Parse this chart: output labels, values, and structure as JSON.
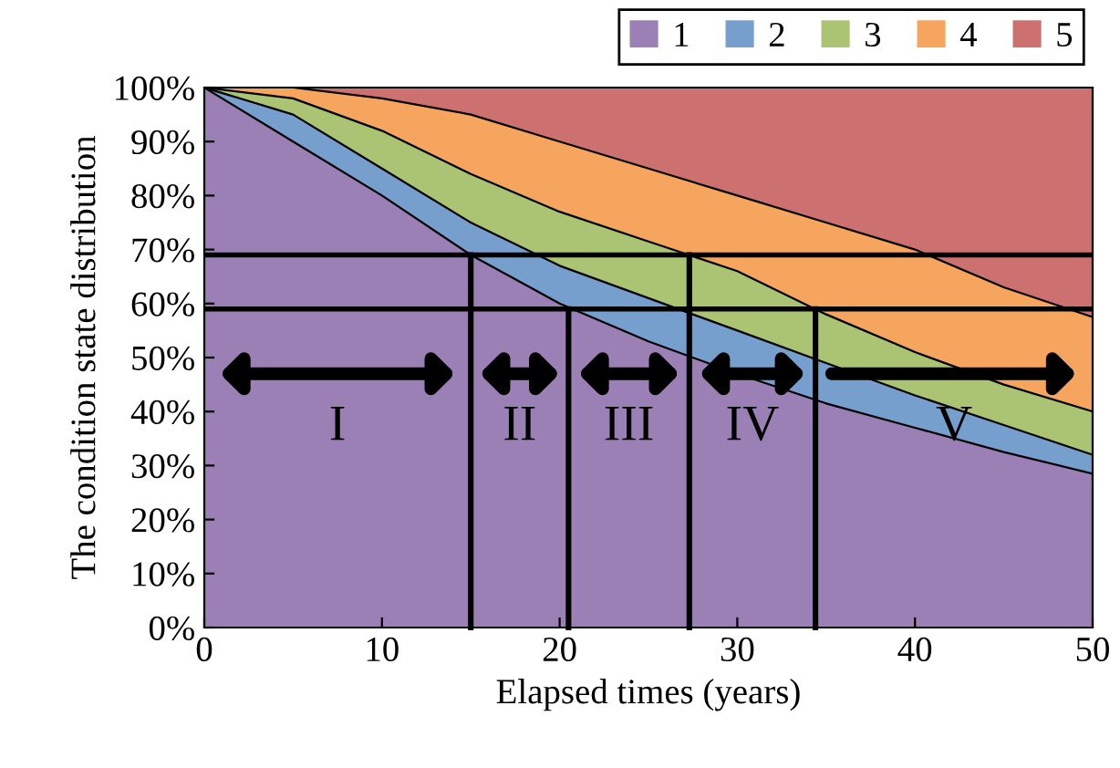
{
  "chart_data": {
    "type": "area",
    "stacked": true,
    "xlabel": "Elapsed times (years)",
    "ylabel": "The condition state distribution",
    "x": [
      0,
      5,
      10,
      15,
      20,
      25,
      30,
      35,
      40,
      45,
      50
    ],
    "series": [
      {
        "name": "1",
        "color": "#9a80b4",
        "values": [
          100,
          90,
          80,
          69,
          60,
          53,
          47,
          41.5,
          37,
          32.5,
          28.5
        ]
      },
      {
        "name": "2",
        "color": "#779fce",
        "values": [
          0,
          5,
          5,
          6,
          7,
          8,
          8,
          7.5,
          6,
          5,
          3.5
        ]
      },
      {
        "name": "3",
        "color": "#abc474",
        "values": [
          0,
          3,
          7,
          9,
          10,
          10.5,
          11,
          9,
          8,
          7.5,
          8
        ]
      },
      {
        "name": "4",
        "color": "#f6a55e",
        "values": [
          0,
          2,
          6,
          11,
          13,
          13.5,
          14,
          17,
          19,
          18,
          17.5
        ]
      },
      {
        "name": "5",
        "color": "#cc7070",
        "values": [
          0,
          0,
          2,
          5,
          10,
          15,
          20,
          25,
          30,
          37,
          42.5
        ]
      }
    ],
    "xlim": [
      0,
      50
    ],
    "xticks": [
      0,
      10,
      20,
      30,
      40,
      50
    ],
    "ylim": [
      0,
      100
    ],
    "yticks": [
      {
        "value": 0,
        "label": "0%"
      },
      {
        "value": 10,
        "label": "10%"
      },
      {
        "value": 20,
        "label": "20%"
      },
      {
        "value": 30,
        "label": "30%"
      },
      {
        "value": 40,
        "label": "40%"
      },
      {
        "value": 50,
        "label": "50%"
      },
      {
        "value": 60,
        "label": "60%"
      },
      {
        "value": 70,
        "label": "70%"
      },
      {
        "value": 80,
        "label": "80%"
      },
      {
        "value": 90,
        "label": "90%"
      },
      {
        "value": 100,
        "label": "100%"
      }
    ],
    "ref_lines": [
      {
        "axis": "y",
        "value": 69,
        "color": "#000000"
      },
      {
        "axis": "y",
        "value": 59,
        "color": "#000000"
      },
      {
        "axis": "x",
        "value": 15,
        "color": "#000000"
      },
      {
        "axis": "x",
        "value": 20.5,
        "color": "#000000"
      },
      {
        "axis": "x",
        "value": 27.3,
        "color": "#000000"
      },
      {
        "axis": "x",
        "value": 34.4,
        "color": "#000000"
      }
    ],
    "annotations": [
      "I",
      "II",
      "III",
      "IV",
      "V"
    ],
    "legend": "top right",
    "grid": false
  }
}
